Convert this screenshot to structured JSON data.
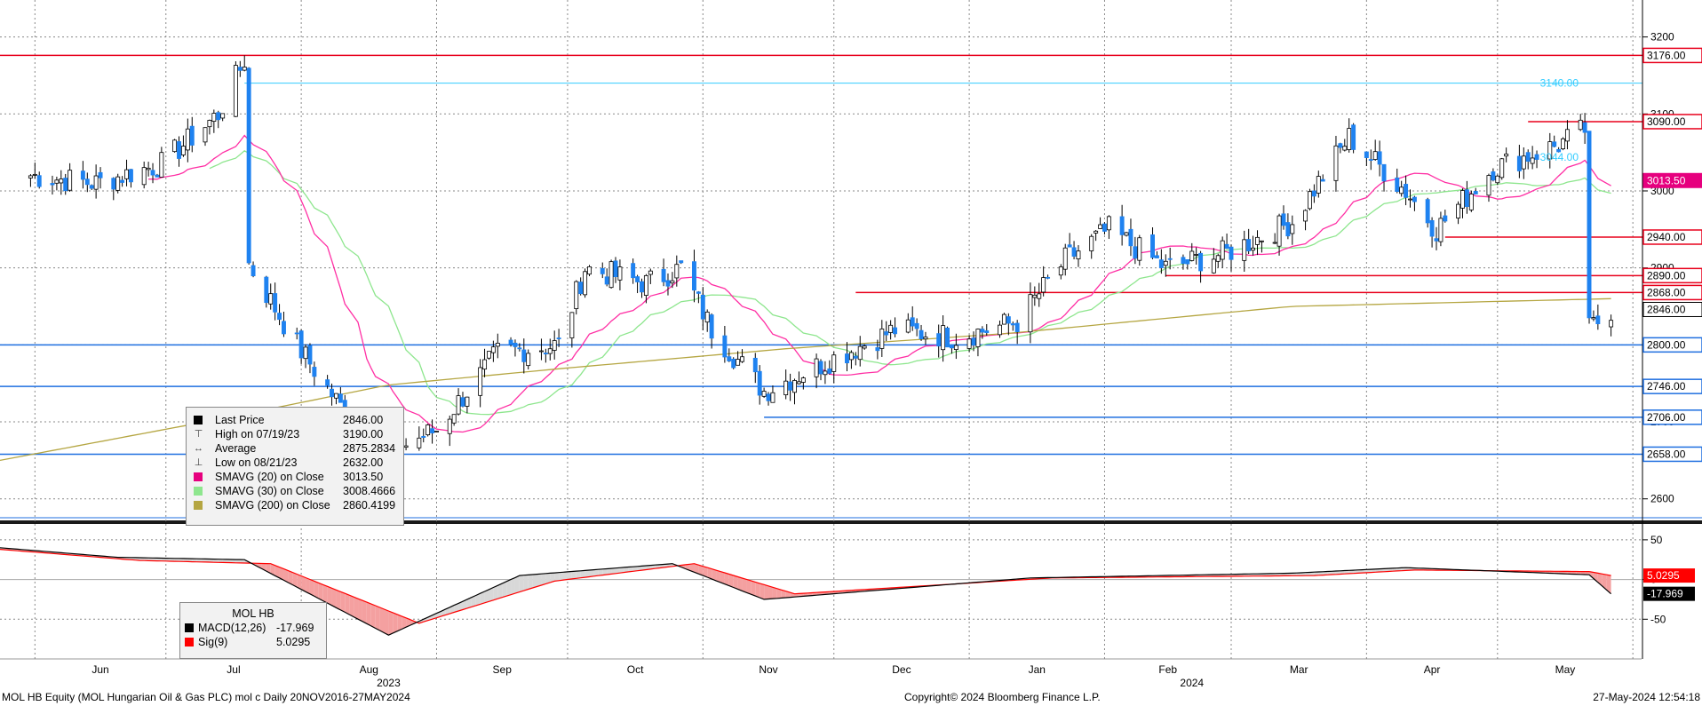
{
  "chart_data": [
    {
      "type": "candlestick",
      "title": "MOL HB Equity (MOL Hungarian Oil & Gas PLC) mol c  Daily 20NOV2016-27MAY2024",
      "ylim": [
        2572,
        3248
      ],
      "y_ticks": [
        2600,
        2700,
        2800,
        2900,
        3000,
        3100,
        3200
      ],
      "x_month_labels": [
        "Jun",
        "Jul",
        "Aug",
        "Sep",
        "Oct",
        "Nov",
        "Dec",
        "Jan",
        "Feb",
        "Mar",
        "Apr",
        "May"
      ],
      "x_year_labels": [
        "2023",
        "2024"
      ],
      "ohlc_anchor_closes": [
        [
          "2023-05-31",
          3020
        ],
        [
          "2023-06-15",
          3010
        ],
        [
          "2023-06-30",
          3035
        ],
        [
          "2023-07-13",
          3100
        ],
        [
          "2023-07-19",
          3170
        ],
        [
          "2023-07-20",
          2905
        ],
        [
          "2023-07-31",
          2800
        ],
        [
          "2023-08-10",
          2720
        ],
        [
          "2023-08-21",
          2660
        ],
        [
          "2023-09-01",
          2690
        ],
        [
          "2023-09-15",
          2790
        ],
        [
          "2023-09-29",
          2800
        ],
        [
          "2023-10-05",
          2900
        ],
        [
          "2023-10-19",
          2880
        ],
        [
          "2023-10-27",
          2900
        ],
        [
          "2023-11-03",
          2820
        ],
        [
          "2023-11-15",
          2740
        ],
        [
          "2023-11-30",
          2780
        ],
        [
          "2023-12-15",
          2820
        ],
        [
          "2023-12-29",
          2810
        ],
        [
          "2024-01-12",
          2830
        ],
        [
          "2024-01-23",
          2910
        ],
        [
          "2024-02-02",
          2950
        ],
        [
          "2024-02-15",
          2900
        ],
        [
          "2024-02-29",
          2920
        ],
        [
          "2024-03-15",
          2960
        ],
        [
          "2024-03-28",
          3070
        ],
        [
          "2024-04-10",
          3000
        ],
        [
          "2024-04-17",
          2950
        ],
        [
          "2024-04-30",
          3030
        ],
        [
          "2024-05-15",
          3060
        ],
        [
          "2024-05-21",
          3080
        ],
        [
          "2024-05-22",
          2820
        ],
        [
          "2024-05-27",
          2846
        ]
      ],
      "horizontal_lines": [
        {
          "value": 3176.0,
          "label": "3176.00",
          "color": "#e8001c",
          "from": "start"
        },
        {
          "value": 3140.0,
          "label": "3140.00",
          "color": "#33ccff",
          "from": "2023-07-19"
        },
        {
          "value": 3090.0,
          "label": "3090.00",
          "color": "#e8001c",
          "from": "2024-05-08"
        },
        {
          "value": 2940.0,
          "label": "2940.00",
          "color": "#e8001c",
          "from": "2024-04-19"
        },
        {
          "value": 2890.0,
          "label": "2890.00",
          "color": "#e8001c",
          "from": "2024-02-15"
        },
        {
          "value": 2868.0,
          "label": "2868.00",
          "color": "#e8001c",
          "from": "2023-12-06"
        },
        {
          "value": 2800.0,
          "label": "2800.00",
          "color": "#1f6fe0",
          "from": "start"
        },
        {
          "value": 2746.0,
          "label": "2746.00",
          "color": "#1f6fe0",
          "from": "start"
        },
        {
          "value": 2706.0,
          "label": "2706.00",
          "color": "#1f6fe0",
          "from": "2023-11-15"
        },
        {
          "value": 2658.0,
          "label": "2658.00",
          "color": "#1f6fe0",
          "from": "start"
        }
      ],
      "inline_labels": [
        {
          "text": "3140.00",
          "value": 3140,
          "color": "#33ccff"
        },
        {
          "text": "3044.00",
          "value": 3044,
          "color": "#33ccff"
        }
      ],
      "axis_tags": [
        {
          "text": "3013.50",
          "value": 3013.5,
          "bg": "#e6007e",
          "fg": "#ffffff"
        },
        {
          "text": "2846.00",
          "value": 2846.0,
          "bg": "#ffffff",
          "fg": "#000000"
        }
      ],
      "series": {
        "sma20_color": "#ff2fa4",
        "sma30_color": "#8ee68e",
        "sma200_color": "#b5a642",
        "bull_color": "#ffffff",
        "bear_color": "#1f82f0",
        "sma200_anchors": [
          [
            "2023-05-24",
            2650
          ],
          [
            "2023-07-10",
            2700
          ],
          [
            "2023-08-21",
            2748
          ],
          [
            "2023-10-01",
            2770
          ],
          [
            "2023-11-20",
            2795
          ],
          [
            "2024-01-10",
            2815
          ],
          [
            "2024-03-15",
            2850
          ],
          [
            "2024-05-27",
            2860
          ]
        ]
      }
    },
    {
      "type": "line",
      "title": "MOL HB",
      "ylim": [
        -100,
        70
      ],
      "y_ticks": [
        50,
        0,
        -50
      ],
      "series": [
        {
          "name": "MACD(12,26)",
          "color": "#000000",
          "anchors": [
            [
              "2023-05-24",
              40
            ],
            [
              "2023-06-20",
              28
            ],
            [
              "2023-07-19",
              25
            ],
            [
              "2023-08-21",
              -70
            ],
            [
              "2023-09-20",
              5
            ],
            [
              "2023-10-25",
              20
            ],
            [
              "2023-11-15",
              -25
            ],
            [
              "2024-01-15",
              2
            ],
            [
              "2024-03-15",
              8
            ],
            [
              "2024-04-10",
              15
            ],
            [
              "2024-05-22",
              6
            ],
            [
              "2024-05-27",
              -17.969
            ]
          ]
        },
        {
          "name": "Sig(9)",
          "color": "#ff0000",
          "anchors": [
            [
              "2023-05-24",
              38
            ],
            [
              "2023-06-25",
              24
            ],
            [
              "2023-07-25",
              20
            ],
            [
              "2023-08-28",
              -55
            ],
            [
              "2023-09-28",
              -2
            ],
            [
              "2023-10-30",
              20
            ],
            [
              "2023-11-22",
              -18
            ],
            [
              "2024-01-20",
              2
            ],
            [
              "2024-03-20",
              5
            ],
            [
              "2024-04-12",
              12
            ],
            [
              "2024-05-22",
              10
            ],
            [
              "2024-05-27",
              5.0295
            ]
          ]
        }
      ],
      "axis_tags": [
        {
          "text": "5.0295",
          "value": 5.0295,
          "bg": "#ff0000",
          "fg": "#ffffff"
        },
        {
          "text": "-17.969",
          "value": -17.969,
          "bg": "#000000",
          "fg": "#ffffff"
        }
      ]
    }
  ],
  "legend_main": {
    "rows": [
      {
        "label": "Last Price",
        "value": "2846.00",
        "glyph": "",
        "swatch": "#000000"
      },
      {
        "label": "High on 07/19/23",
        "value": "3190.00",
        "glyph": "⊤",
        "swatch": ""
      },
      {
        "label": "Average",
        "value": "2875.2834",
        "glyph": "↔",
        "swatch": ""
      },
      {
        "label": "Low on 08/21/23",
        "value": "2632.00",
        "glyph": "⊥",
        "swatch": ""
      },
      {
        "label": "SMAVG (20)  on Close",
        "value": "3013.50",
        "glyph": "",
        "swatch": "#e6007e"
      },
      {
        "label": "SMAVG (30)  on Close",
        "value": "3008.4666",
        "glyph": "",
        "swatch": "#8ee68e"
      },
      {
        "label": "SMAVG (200)  on Close",
        "value": "2860.4199",
        "glyph": "",
        "swatch": "#b5a642"
      }
    ]
  },
  "legend_macd": {
    "title": "MOL HB",
    "rows": [
      {
        "label": "MACD(12,26)",
        "value": "-17.969",
        "swatch": "#000000"
      },
      {
        "label": "Sig(9)",
        "value": "5.0295",
        "swatch": "#ff0000"
      }
    ]
  },
  "footer": {
    "left": "MOL HB Equity (MOL Hungarian Oil & Gas PLC) mol c  Daily 20NOV2016-27MAY2024",
    "center": "Copyright© 2024 Bloomberg Finance L.P.",
    "right": "27-May-2024 12:54:18"
  }
}
